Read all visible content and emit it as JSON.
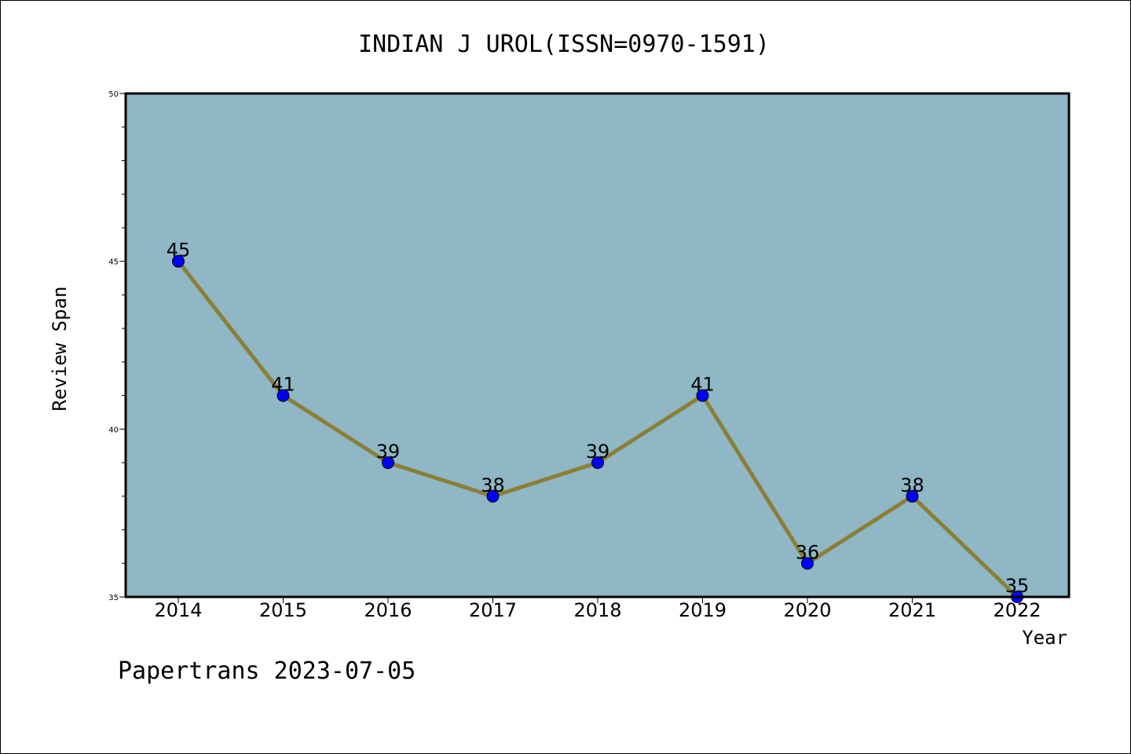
{
  "chart_data": {
    "type": "line",
    "title": "INDIAN J UROL(ISSN=0970-1591)",
    "xlabel": "Year",
    "ylabel": "Review Span",
    "categories": [
      "2014",
      "2015",
      "2016",
      "2017",
      "2018",
      "2019",
      "2020",
      "2021",
      "2022"
    ],
    "series": [
      {
        "values": [
          45,
          41,
          39,
          38,
          39,
          41,
          36,
          38,
          35
        ]
      }
    ],
    "ylim": [
      35,
      50
    ],
    "yticks": [
      "35",
      "40",
      "45",
      "50"
    ],
    "grid": false,
    "legend": "none",
    "colors": {
      "plot_background": "#8fb7c5",
      "line": "#8b7f37",
      "marker": "#0000ff"
    }
  },
  "footer": "Papertrans 2023-07-05"
}
